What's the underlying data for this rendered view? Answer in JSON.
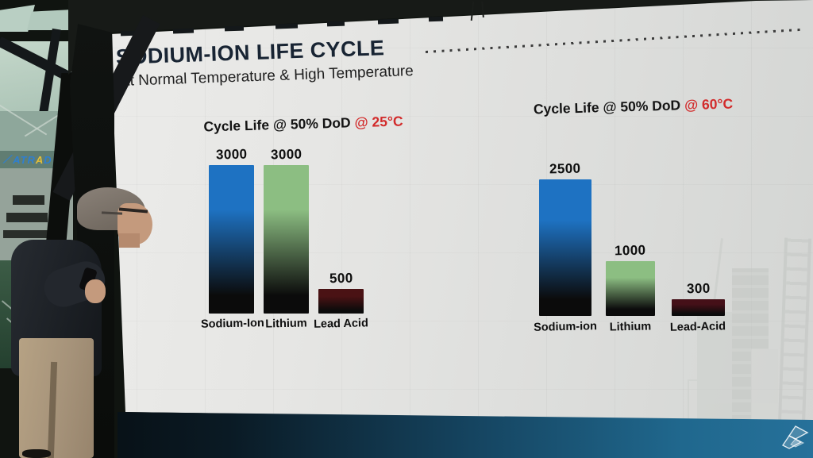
{
  "slide": {
    "title": "SODIUM-ION LIFE CYCLE",
    "subtitle": "At Normal Temperature & High Temperature",
    "title_color": "#182433",
    "accent_red": "#d22b2b"
  },
  "chart_data": [
    {
      "type": "bar",
      "title": "Cycle Life @ 50% DoD @ 25°C",
      "title_prefix": "Cycle Life @ 50% DoD",
      "title_temp": "@ 25°C",
      "temp_color": "#d22b2b",
      "categories": [
        "Sodium-Ion",
        "Lithium",
        "Lead Acid"
      ],
      "values": [
        3000,
        3000,
        500
      ],
      "bar_top_colors": [
        "#1e72c2",
        "#8cbe82",
        "#4a1214"
      ],
      "bar_bottom_color": "#0b0b0b",
      "ylim": [
        0,
        3000
      ],
      "data_labels": true,
      "grid": false,
      "legend": false
    },
    {
      "type": "bar",
      "title": "Cycle Life @ 50% DoD @ 60°C",
      "title_prefix": "Cycle Life @ 50% DoD",
      "title_temp": "@ 60°C",
      "temp_color": "#d22b2b",
      "categories": [
        "Sodium-ion",
        "Lithium",
        "Lead-Acid"
      ],
      "values": [
        2500,
        1000,
        300
      ],
      "bar_top_colors": [
        "#1e72c2",
        "#8cbe82",
        "#451018"
      ],
      "bar_bottom_color": "#0b0b0b",
      "ylim": [
        0,
        2500
      ],
      "data_labels": true,
      "grid": false,
      "legend": false
    }
  ],
  "scene": {
    "building_sign": {
      "pre": "ATR",
      "highlight": "A",
      "post": "D"
    },
    "sign_color": "#2f7fd0",
    "sign_highlight_color": "#e3bf3a",
    "corner_color": "#20688e"
  }
}
